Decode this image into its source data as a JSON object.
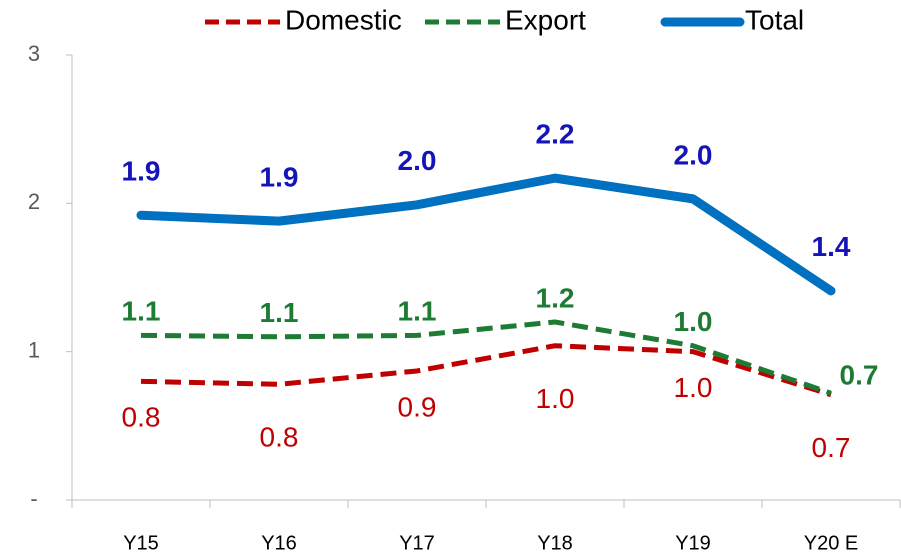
{
  "chart_data": {
    "type": "line",
    "categories": [
      "Y15",
      "Y16",
      "Y17",
      "Y18",
      "Y19",
      "Y20 E"
    ],
    "series": [
      {
        "name": "Domestic",
        "color": "#c00000",
        "label_color": "#c00000",
        "dash": true,
        "values": [
          0.8,
          0.78,
          0.87,
          1.04,
          1.0,
          0.71
        ],
        "value_labels": [
          "0.8",
          "0.8",
          "0.9",
          "1.0",
          "1.0",
          "0.7"
        ]
      },
      {
        "name": "Export",
        "color": "#1e7b34",
        "label_color": "#1e7b34",
        "dash": true,
        "values": [
          1.11,
          1.1,
          1.11,
          1.2,
          1.04,
          0.72
        ],
        "value_labels": [
          "1.1",
          "1.1",
          "1.1",
          "1.2",
          "1.0",
          "0.7"
        ]
      },
      {
        "name": "Total",
        "color": "#0070c0",
        "label_color": "#1414b8",
        "dash": false,
        "values": [
          1.92,
          1.88,
          1.99,
          2.17,
          2.03,
          1.41
        ],
        "value_labels": [
          "1.9",
          "1.9",
          "2.0",
          "2.2",
          "2.0",
          "1.4"
        ]
      }
    ],
    "ylim": [
      0,
      3
    ],
    "yticks": [
      {
        "value": 0,
        "label": "-"
      },
      1,
      2,
      3
    ],
    "grid": false
  }
}
